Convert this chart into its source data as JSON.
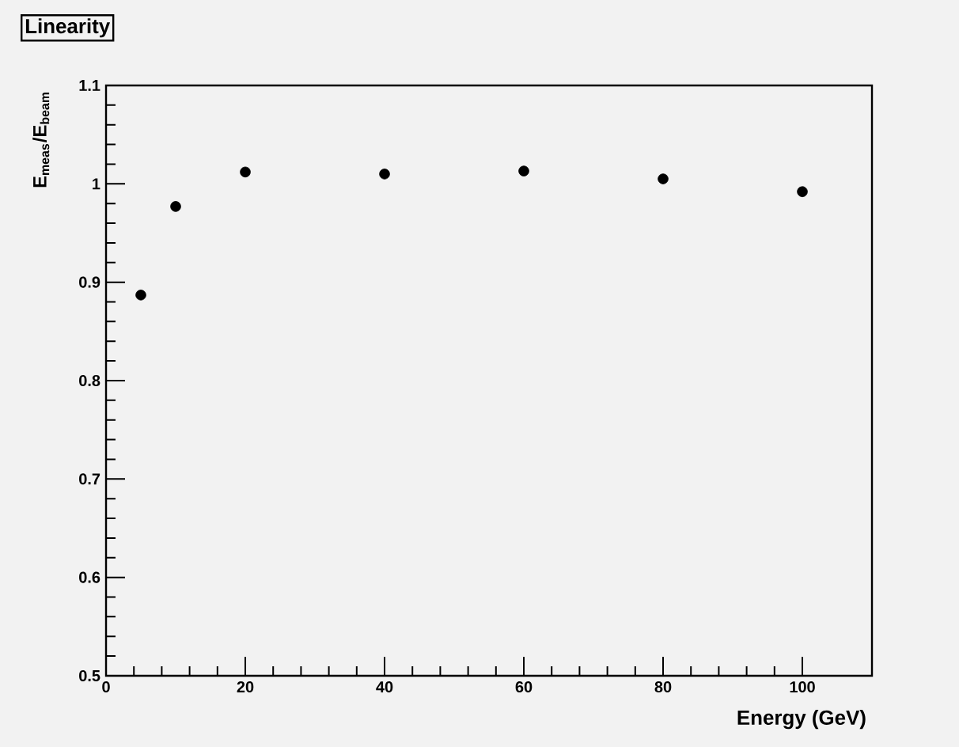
{
  "chart_data": {
    "type": "scatter",
    "title": "Linearity",
    "xlabel": "Energy (GeV)",
    "ylabel": "E$_{meas}$/E$_{beam}$",
    "x": [
      5,
      10,
      20,
      40,
      60,
      80,
      100
    ],
    "series": [
      {
        "color": "#000000",
        "values": [
          0.887,
          0.977,
          1.012,
          1.01,
          1.013,
          1.005,
          0.992
        ]
      }
    ],
    "xlim": [
      0,
      110
    ],
    "xticks": [
      0,
      20,
      40,
      60,
      80,
      100
    ],
    "ylim": [
      0.5,
      1.1
    ],
    "yticks": [
      0.5,
      0.6,
      0.7,
      0.8,
      0.9,
      1,
      1.1
    ],
    "grid": false,
    "marker": "circle"
  }
}
